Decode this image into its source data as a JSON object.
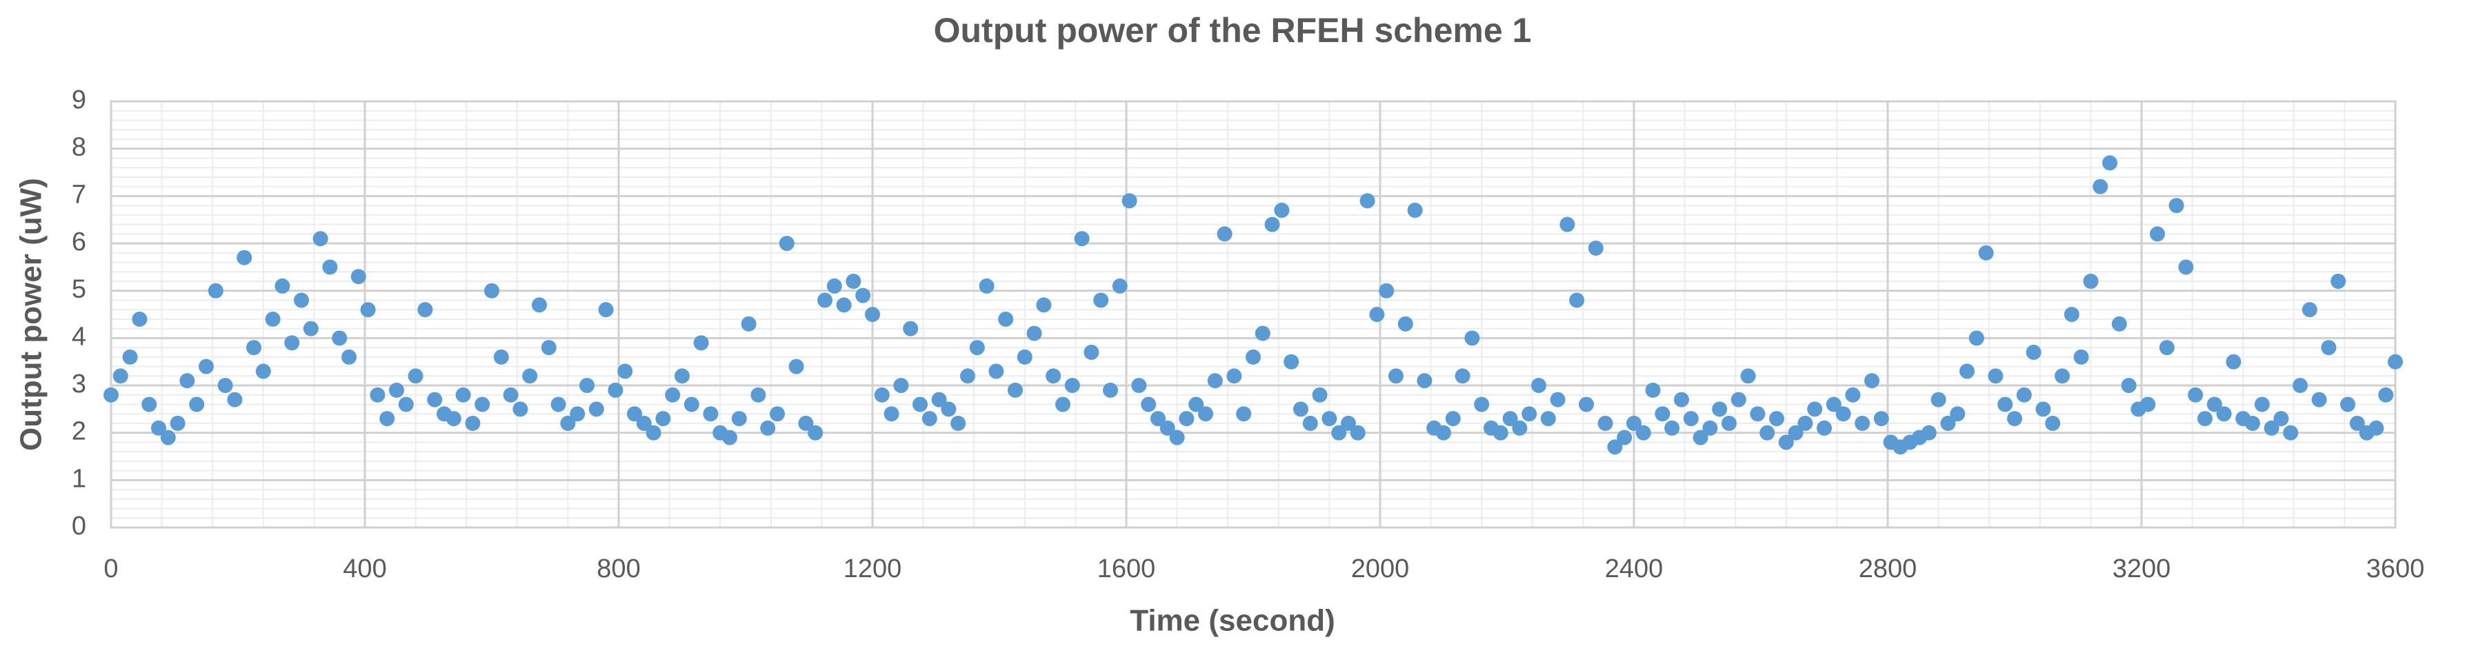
{
  "chart_data": {
    "type": "scatter",
    "title": "Output power of the RFEH  scheme 1",
    "xlabel": "Time (second)",
    "ylabel": "Output power (uW)",
    "xlim": [
      0,
      3600
    ],
    "ylim": [
      0,
      9
    ],
    "xticks": [
      0,
      400,
      800,
      1200,
      1600,
      2000,
      2400,
      2800,
      3200,
      3600
    ],
    "yticks": [
      0,
      1,
      2,
      3,
      4,
      5,
      6,
      7,
      8,
      9
    ],
    "grid": true,
    "color": "#5b9bd5",
    "x": [
      0,
      15,
      30,
      45,
      60,
      75,
      90,
      105,
      120,
      135,
      150,
      165,
      180,
      195,
      210,
      225,
      240,
      255,
      270,
      285,
      300,
      315,
      330,
      345,
      360,
      375,
      390,
      405,
      420,
      435,
      450,
      465,
      480,
      495,
      510,
      525,
      540,
      555,
      570,
      585,
      600,
      615,
      630,
      645,
      660,
      675,
      690,
      705,
      720,
      735,
      750,
      765,
      780,
      795,
      810,
      825,
      840,
      855,
      870,
      885,
      900,
      915,
      930,
      945,
      960,
      975,
      990,
      1005,
      1020,
      1035,
      1050,
      1065,
      1080,
      1095,
      1110,
      1125,
      1140,
      1155,
      1170,
      1185,
      1200,
      1215,
      1230,
      1245,
      1260,
      1275,
      1290,
      1305,
      1320,
      1335,
      1350,
      1365,
      1380,
      1395,
      1410,
      1425,
      1440,
      1455,
      1470,
      1485,
      1500,
      1515,
      1530,
      1545,
      1560,
      1575,
      1590,
      1605,
      1620,
      1635,
      1650,
      1665,
      1680,
      1695,
      1710,
      1725,
      1740,
      1755,
      1770,
      1785,
      1800,
      1815,
      1830,
      1845,
      1860,
      1875,
      1890,
      1905,
      1920,
      1935,
      1950,
      1965,
      1980,
      1995,
      2010,
      2025,
      2040,
      2055,
      2070,
      2085,
      2100,
      2115,
      2130,
      2145,
      2160,
      2175,
      2190,
      2205,
      2220,
      2235,
      2250,
      2265,
      2280,
      2295,
      2310,
      2325,
      2340,
      2355,
      2370,
      2385,
      2400,
      2415,
      2430,
      2445,
      2460,
      2475,
      2490,
      2505,
      2520,
      2535,
      2550,
      2565,
      2580,
      2595,
      2610,
      2625,
      2640,
      2655,
      2670,
      2685,
      2700,
      2715,
      2730,
      2745,
      2760,
      2775,
      2790,
      2805,
      2820,
      2835,
      2850,
      2865,
      2880,
      2895,
      2910,
      2925,
      2940,
      2955,
      2970,
      2985,
      3000,
      3015,
      3030,
      3045,
      3060,
      3075,
      3090,
      3105,
      3120,
      3135,
      3150,
      3165,
      3180,
      3195,
      3210,
      3225,
      3240,
      3255,
      3270,
      3285,
      3300,
      3315,
      3330,
      3345,
      3360,
      3375,
      3390,
      3405,
      3420,
      3435,
      3450,
      3465,
      3480,
      3495,
      3510,
      3525,
      3540,
      3555,
      3570,
      3585,
      3600
    ],
    "values": [
      2.8,
      3.2,
      3.6,
      4.4,
      2.6,
      2.1,
      1.9,
      2.2,
      3.1,
      2.6,
      3.4,
      5.0,
      3.0,
      2.7,
      5.7,
      3.8,
      3.3,
      4.4,
      5.1,
      3.9,
      4.8,
      4.2,
      6.1,
      5.5,
      4.0,
      3.6,
      5.3,
      4.6,
      2.8,
      2.3,
      2.9,
      2.6,
      3.2,
      4.6,
      2.7,
      2.4,
      2.3,
      2.8,
      2.2,
      2.6,
      5.0,
      3.6,
      2.8,
      2.5,
      3.2,
      4.7,
      3.8,
      2.6,
      2.2,
      2.4,
      3.0,
      2.5,
      4.6,
      2.9,
      3.3,
      2.4,
      2.2,
      2.0,
      2.3,
      2.8,
      3.2,
      2.6,
      3.9,
      2.4,
      2.0,
      1.9,
      2.3,
      4.3,
      2.8,
      2.1,
      2.4,
      6.0,
      3.4,
      2.2,
      2.0,
      4.8,
      5.1,
      4.7,
      5.2,
      4.9,
      4.5,
      2.8,
      2.4,
      3.0,
      4.2,
      2.6,
      2.3,
      2.7,
      2.5,
      2.2,
      3.2,
      3.8,
      5.1,
      3.3,
      4.4,
      2.9,
      3.6,
      4.1,
      4.7,
      3.2,
      2.6,
      3.0,
      6.1,
      3.7,
      4.8,
      2.9,
      5.1,
      6.9,
      3.0,
      2.6,
      2.3,
      2.1,
      1.9,
      2.3,
      2.6,
      2.4,
      3.1,
      6.2,
      3.2,
      2.4,
      3.6,
      4.1,
      6.4,
      6.7,
      3.5,
      2.5,
      2.2,
      2.8,
      2.3,
      2.0,
      2.2,
      2.0,
      6.9,
      4.5,
      5.0,
      3.2,
      4.3,
      6.7,
      3.1,
      2.1,
      2.0,
      2.3,
      3.2,
      4.0,
      2.6,
      2.1,
      2.0,
      2.3,
      2.1,
      2.4,
      3.0,
      2.3,
      2.7,
      6.4,
      4.8,
      2.6,
      5.9,
      2.2,
      1.7,
      1.9,
      2.2,
      2.0,
      2.9,
      2.4,
      2.1,
      2.7,
      2.3,
      1.9,
      2.1,
      2.5,
      2.2,
      2.7,
      3.2,
      2.4,
      2.0,
      2.3,
      1.8,
      2.0,
      2.2,
      2.5,
      2.1,
      2.6,
      2.4,
      2.8,
      2.2,
      3.1,
      2.3,
      1.8,
      1.7,
      1.8,
      1.9,
      2.0,
      2.7,
      2.2,
      2.4,
      3.3,
      4.0,
      5.8,
      3.2,
      2.6,
      2.3,
      2.8,
      3.7,
      2.5,
      2.2,
      3.2,
      4.5,
      3.6,
      5.2,
      7.2,
      7.7,
      4.3,
      3.0,
      2.5,
      2.6,
      6.2,
      3.8,
      6.8,
      5.5,
      2.8,
      2.3,
      2.6,
      2.4,
      3.5,
      2.3,
      2.2,
      2.6,
      2.1,
      2.3,
      2.0,
      3.0,
      4.6,
      2.7,
      3.8,
      5.2,
      2.6,
      2.2,
      2.0,
      2.1,
      2.8,
      3.5
    ]
  }
}
